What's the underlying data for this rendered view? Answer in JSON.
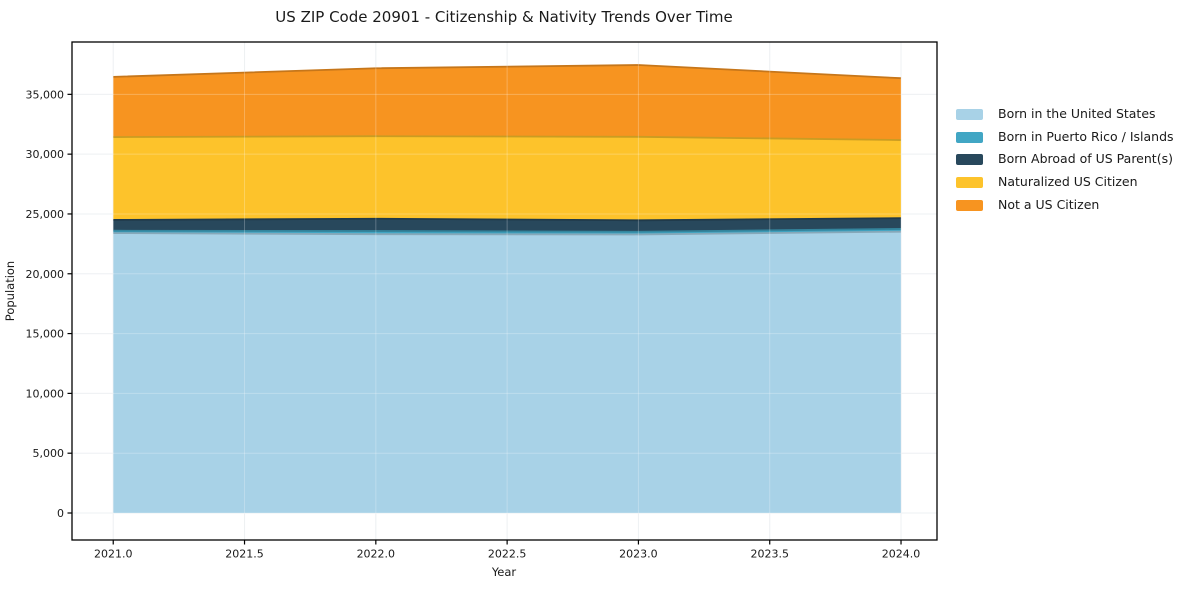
{
  "chart_data": {
    "type": "area",
    "stacked": true,
    "title": "US ZIP Code 20901 - Citizenship & Nativity Trends Over Time",
    "xlabel": "Year",
    "ylabel": "Population",
    "x": [
      2021,
      2022,
      2023,
      2024
    ],
    "series": [
      {
        "name": "Born in the United States",
        "color": "#a8d2e7",
        "values": [
          23400,
          23310,
          23290,
          23520
        ]
      },
      {
        "name": "Born in Puerto Rico / Islands",
        "color": "#41a6c4",
        "values": [
          200,
          260,
          220,
          230
        ]
      },
      {
        "name": "Born Abroad of US Parent(s)",
        "color": "#28485c",
        "values": [
          900,
          1030,
          960,
          900
        ]
      },
      {
        "name": "Naturalized US Citizen",
        "color": "#fdc32b",
        "values": [
          6930,
          6900,
          6980,
          6530
        ]
      },
      {
        "name": "Not a US Citizen",
        "color": "#f79420",
        "values": [
          5030,
          5680,
          6000,
          5170
        ]
      }
    ],
    "totals": [
      36460,
      37180,
      37450,
      36350
    ],
    "x_ticks": [
      2021.0,
      2021.5,
      2022.0,
      2022.5,
      2023.0,
      2023.5,
      2024.0
    ],
    "x_tick_labels": [
      "2021.0",
      "2021.5",
      "2022.0",
      "2022.5",
      "2023.0",
      "2023.5",
      "2024.0"
    ],
    "y_ticks": [
      0,
      5000,
      10000,
      15000,
      20000,
      25000,
      30000,
      35000
    ],
    "y_tick_labels": [
      "0",
      "5,000",
      "10,000",
      "15,000",
      "20,000",
      "25,000",
      "30,000",
      "35,000"
    ],
    "xlim": [
      2020.843,
      2024.137
    ],
    "ylim": [
      -2257,
      39376
    ],
    "grid": true,
    "legend_position": "right"
  }
}
